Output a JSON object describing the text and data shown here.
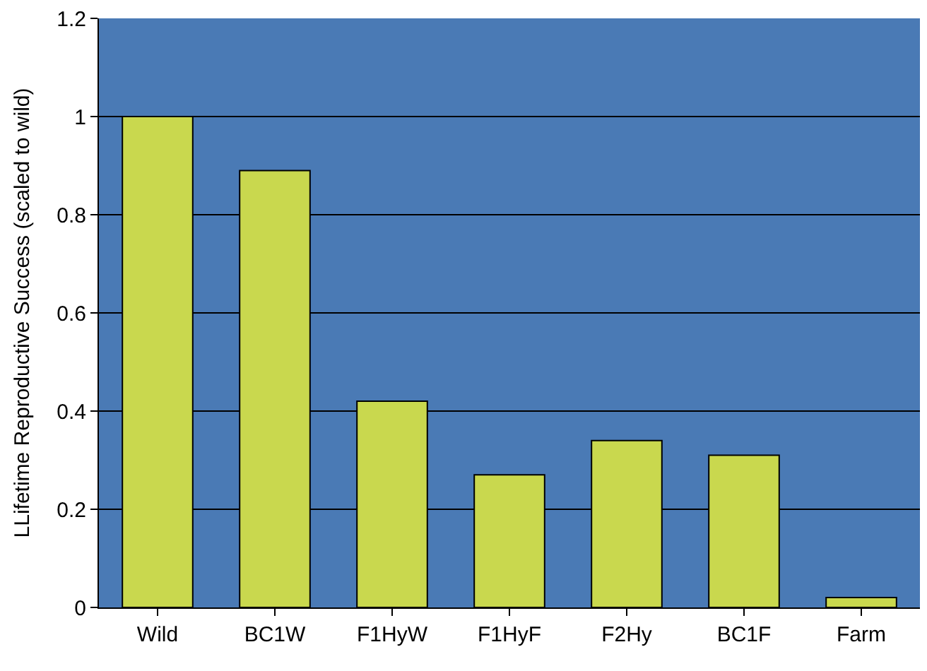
{
  "chart_data": {
    "type": "bar",
    "ylabel": "LLifetime Reproductive Success (scaled to wild)",
    "categories": [
      "Wild",
      "BC1W",
      "F1HyW",
      "F1HyF",
      "F2Hy",
      "BC1F",
      "Farm"
    ],
    "values": [
      1.0,
      0.89,
      0.42,
      0.27,
      0.34,
      0.31,
      0.02
    ],
    "color": "#c9d84e",
    "ylim": [
      0,
      1.2
    ],
    "yticks": [
      0,
      0.2,
      0.4,
      0.6,
      0.8,
      1,
      1.2
    ],
    "grid": "y"
  }
}
